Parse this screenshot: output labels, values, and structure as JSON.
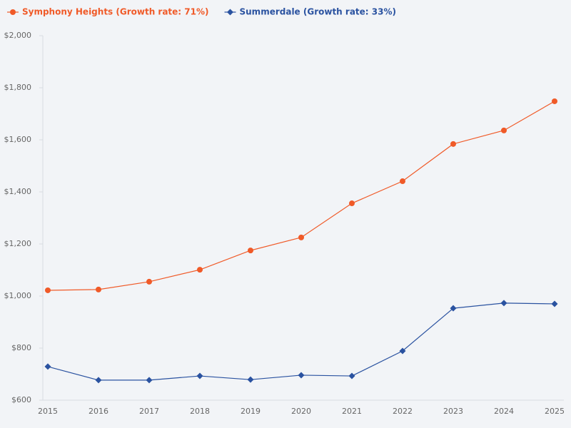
{
  "chart_data": {
    "type": "line",
    "categories": [
      "2015",
      "2016",
      "2017",
      "2018",
      "2019",
      "2020",
      "2021",
      "2022",
      "2023",
      "2024",
      "2025"
    ],
    "series": [
      {
        "name": "Symphony Heights (Growth rate: 71%)",
        "color": "#f05a28",
        "marker": "circle",
        "values": [
          1022,
          1025,
          1055,
          1101,
          1175,
          1225,
          1356,
          1441,
          1584,
          1636,
          1748
        ]
      },
      {
        "name": "Summerdale (Growth rate: 33%)",
        "color": "#2a52a0",
        "marker": "diamond",
        "values": [
          729,
          677,
          677,
          693,
          679,
          696,
          693,
          789,
          953,
          973,
          970
        ]
      }
    ],
    "ylim": [
      600,
      2000
    ],
    "yticks": [
      {
        "value": 600,
        "label": "$600"
      },
      {
        "value": 800,
        "label": "$800"
      },
      {
        "value": 1000,
        "label": "$1,000"
      },
      {
        "value": 1200,
        "label": "$1,200"
      },
      {
        "value": 1400,
        "label": "$1,400"
      },
      {
        "value": 1600,
        "label": "$1,600"
      },
      {
        "value": 1800,
        "label": "$1,800"
      },
      {
        "value": 2000,
        "label": "$2,000"
      }
    ],
    "grid": false
  }
}
